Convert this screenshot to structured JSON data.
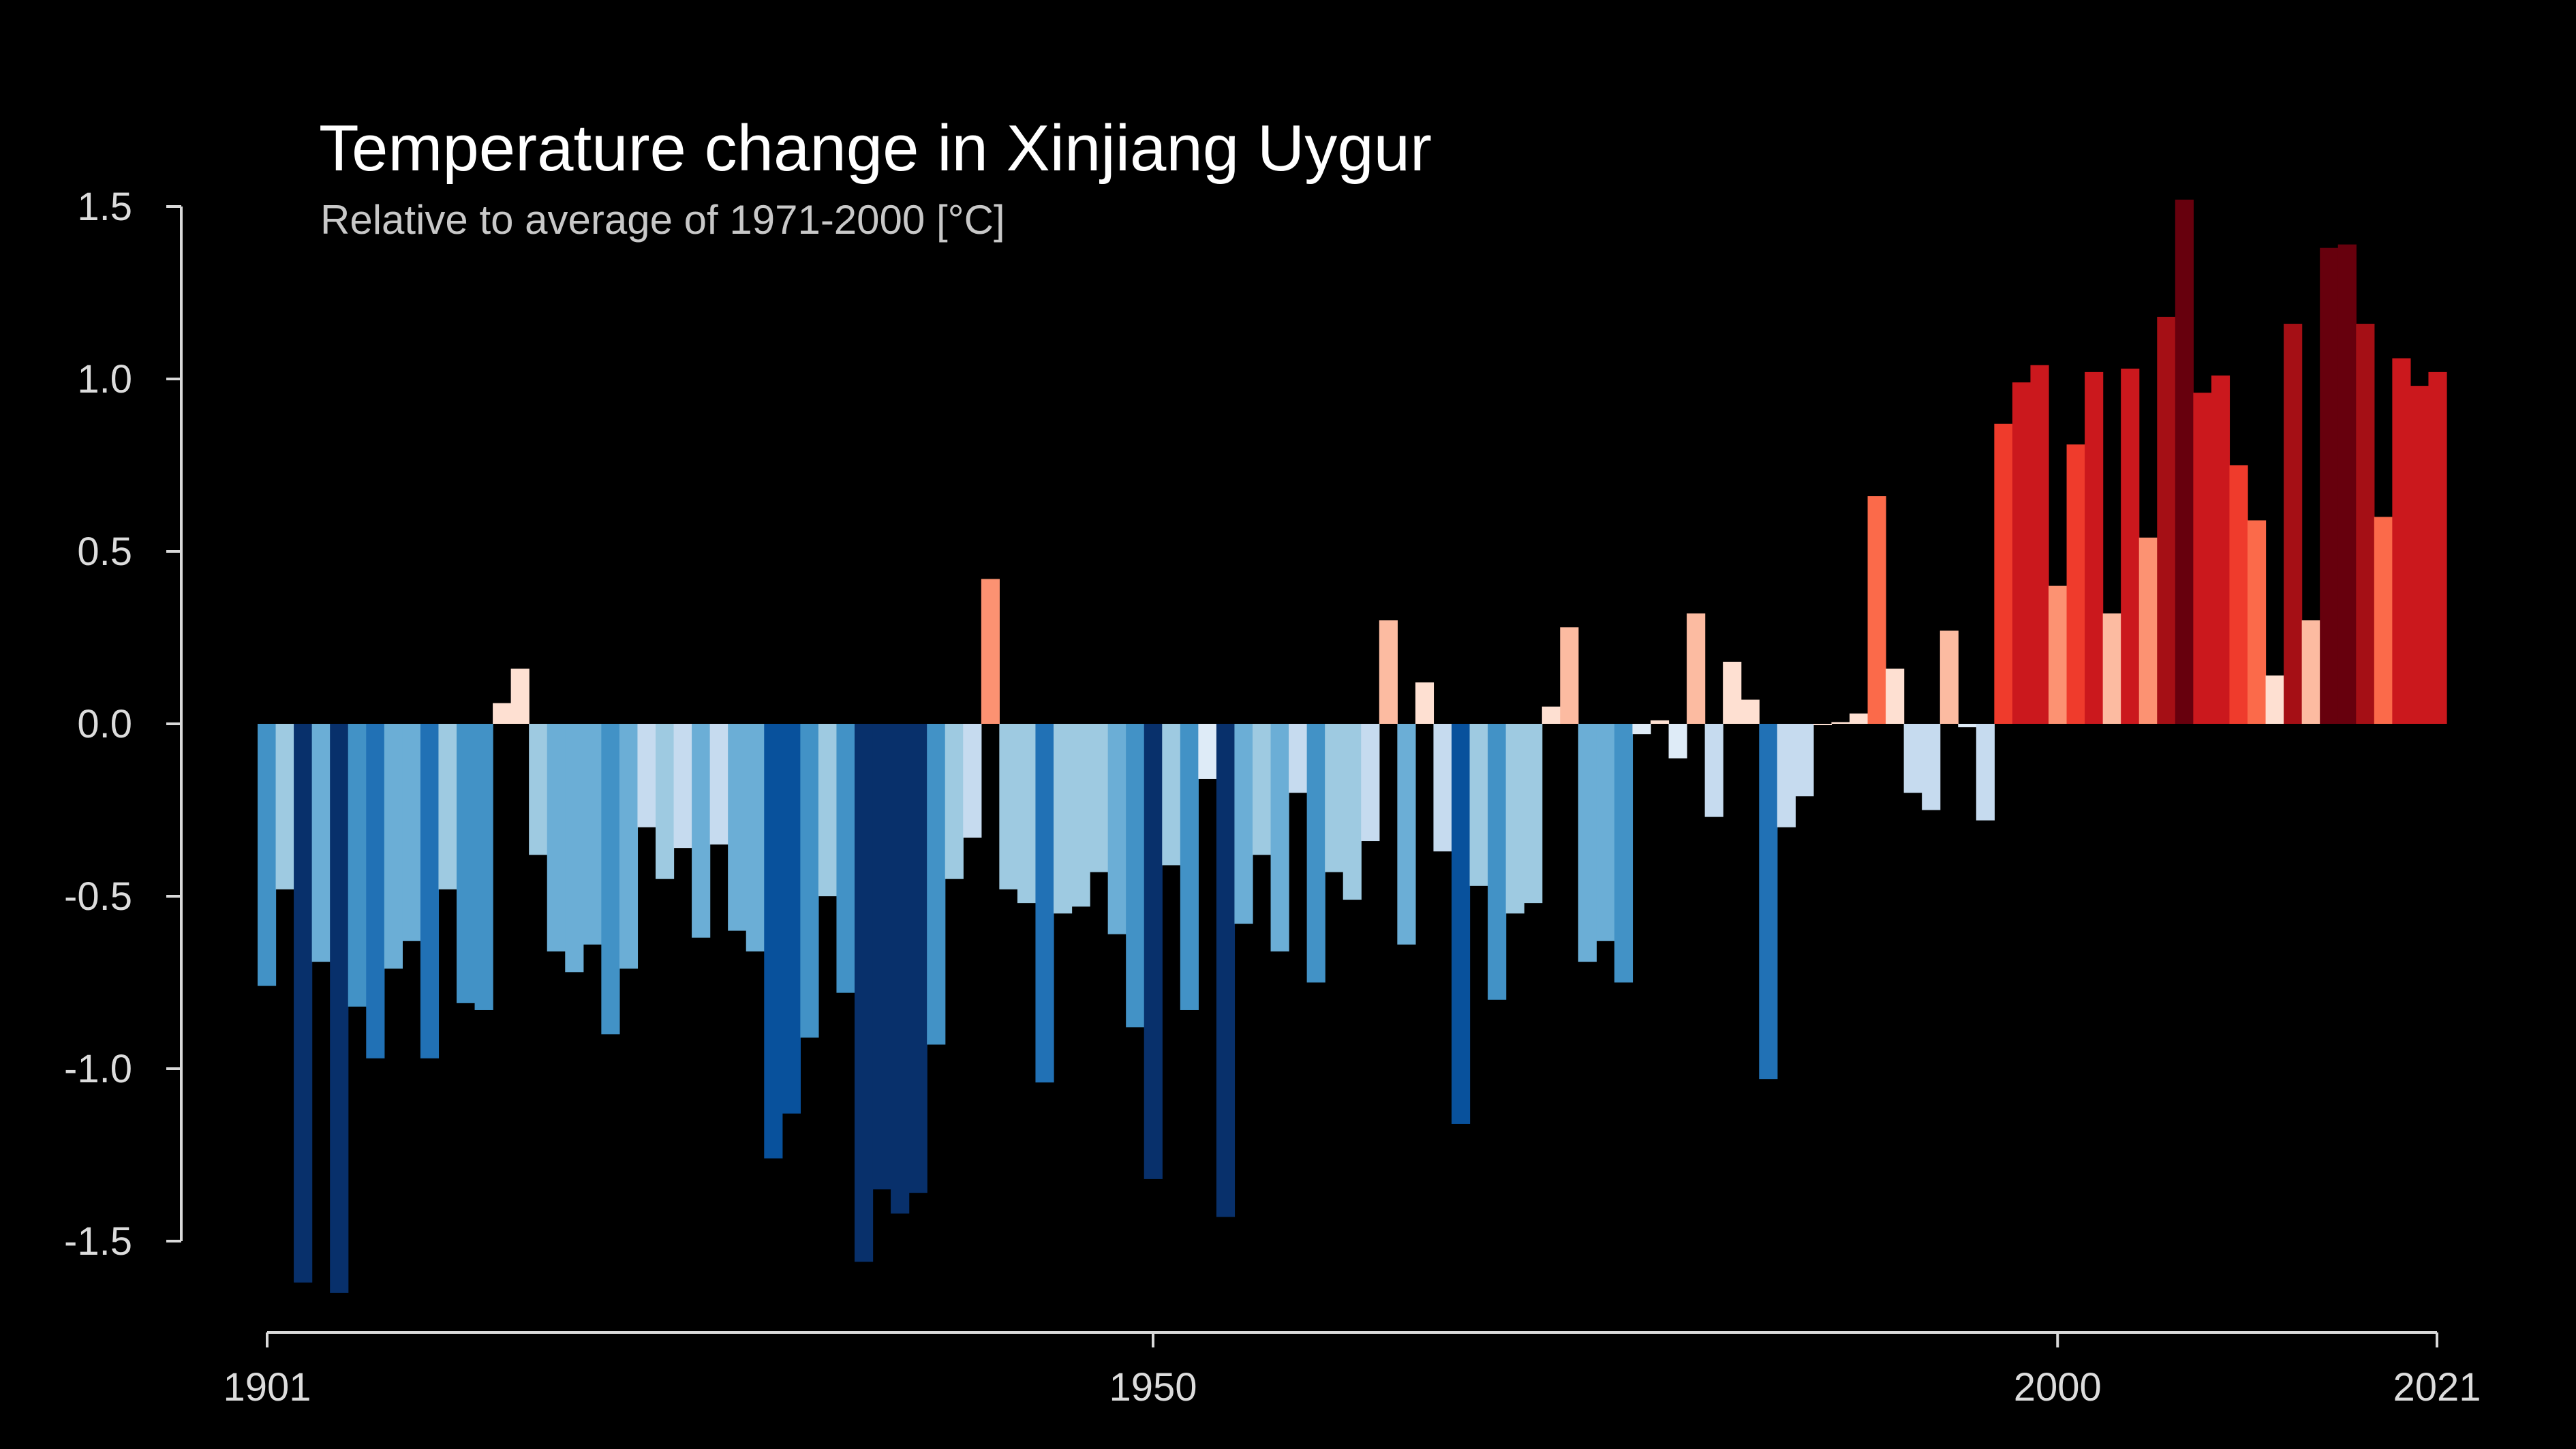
{
  "chart_data": {
    "type": "bar",
    "title": "Temperature change in Xinjiang Uygur",
    "subtitle": "Relative to average of 1971-2000  [°C]",
    "xlabel": "",
    "ylabel": "",
    "x_start": 1901,
    "x_end": 2021,
    "x_ticks": [
      1901,
      1950,
      2000,
      2021
    ],
    "ylim": [
      -1.6,
      1.5
    ],
    "y_ticks": [
      "1.5",
      "1.0",
      "0.5",
      "0.0",
      "-0.5",
      "-1.0",
      "-1.5"
    ],
    "grid": false,
    "colors": {
      "background": "#000000",
      "axis": "#d9d9d9",
      "cool_scale": [
        "#deebf7",
        "#c6dbef",
        "#9ecae1",
        "#6baed6",
        "#4292c6",
        "#2171b5",
        "#08519c",
        "#08306b"
      ],
      "warm_scale": [
        "#fee0d2",
        "#fcbba1",
        "#fc9272",
        "#fb6a4a",
        "#ef3b2c",
        "#cb181d",
        "#a50f15",
        "#67000d"
      ]
    },
    "years": [
      1901,
      1902,
      1903,
      1904,
      1905,
      1906,
      1907,
      1908,
      1909,
      1910,
      1911,
      1912,
      1913,
      1914,
      1915,
      1916,
      1917,
      1918,
      1919,
      1920,
      1921,
      1922,
      1923,
      1924,
      1925,
      1926,
      1927,
      1928,
      1929,
      1930,
      1931,
      1932,
      1933,
      1934,
      1935,
      1936,
      1937,
      1938,
      1939,
      1940,
      1941,
      1942,
      1943,
      1944,
      1945,
      1946,
      1947,
      1948,
      1949,
      1950,
      1951,
      1952,
      1953,
      1954,
      1955,
      1956,
      1957,
      1958,
      1959,
      1960,
      1961,
      1962,
      1963,
      1964,
      1965,
      1966,
      1967,
      1968,
      1969,
      1970,
      1971,
      1972,
      1973,
      1974,
      1975,
      1976,
      1977,
      1978,
      1979,
      1980,
      1981,
      1982,
      1983,
      1984,
      1985,
      1986,
      1987,
      1988,
      1989,
      1990,
      1991,
      1992,
      1993,
      1994,
      1995,
      1996,
      1997,
      1998,
      1999,
      2000,
      2001,
      2002,
      2003,
      2004,
      2005,
      2006,
      2007,
      2008,
      2009,
      2010,
      2011,
      2012,
      2013,
      2014,
      2015,
      2016,
      2017,
      2018,
      2019,
      2020,
      2021
    ],
    "values": [
      -0.76,
      -0.48,
      -1.62,
      -0.69,
      -1.65,
      -0.82,
      -0.97,
      -0.71,
      -0.63,
      -0.97,
      -0.48,
      -0.81,
      -0.83,
      0.06,
      0.16,
      -0.38,
      -0.66,
      -0.72,
      -0.64,
      -0.9,
      -0.71,
      -0.3,
      -0.45,
      -0.36,
      -0.62,
      -0.35,
      -0.6,
      -0.66,
      -1.26,
      -1.13,
      -0.91,
      -0.5,
      -0.78,
      -1.56,
      -1.35,
      -1.42,
      -1.36,
      -0.93,
      -0.45,
      -0.33,
      0.42,
      -0.48,
      -0.52,
      -1.04,
      -0.55,
      -0.53,
      -0.43,
      -0.61,
      -0.88,
      -1.32,
      -0.41,
      -0.83,
      -0.16,
      -1.43,
      -0.58,
      -0.38,
      -0.66,
      -0.2,
      -0.75,
      -0.43,
      -0.51,
      -0.34,
      0.3,
      -0.64,
      0.12,
      -0.37,
      -1.16,
      -0.47,
      -0.8,
      -0.55,
      -0.52,
      0.05,
      0.28,
      -0.69,
      -0.63,
      -0.75,
      -0.03,
      0.01,
      -0.1,
      0.32,
      -0.27,
      0.18,
      0.07,
      -1.03,
      -0.3,
      -0.21,
      0.0,
      0.005,
      0.03,
      0.66,
      0.16,
      -0.2,
      -0.25,
      0.27,
      -0.01,
      -0.28,
      0.87,
      0.99,
      1.04,
      0.4,
      0.81,
      1.02,
      0.32,
      1.03,
      0.54,
      1.18,
      1.52,
      0.96,
      1.01,
      0.75,
      0.59,
      0.14,
      1.16,
      0.3,
      1.38,
      1.39,
      1.16,
      0.6,
      1.06,
      0.98,
      1.02
    ]
  }
}
